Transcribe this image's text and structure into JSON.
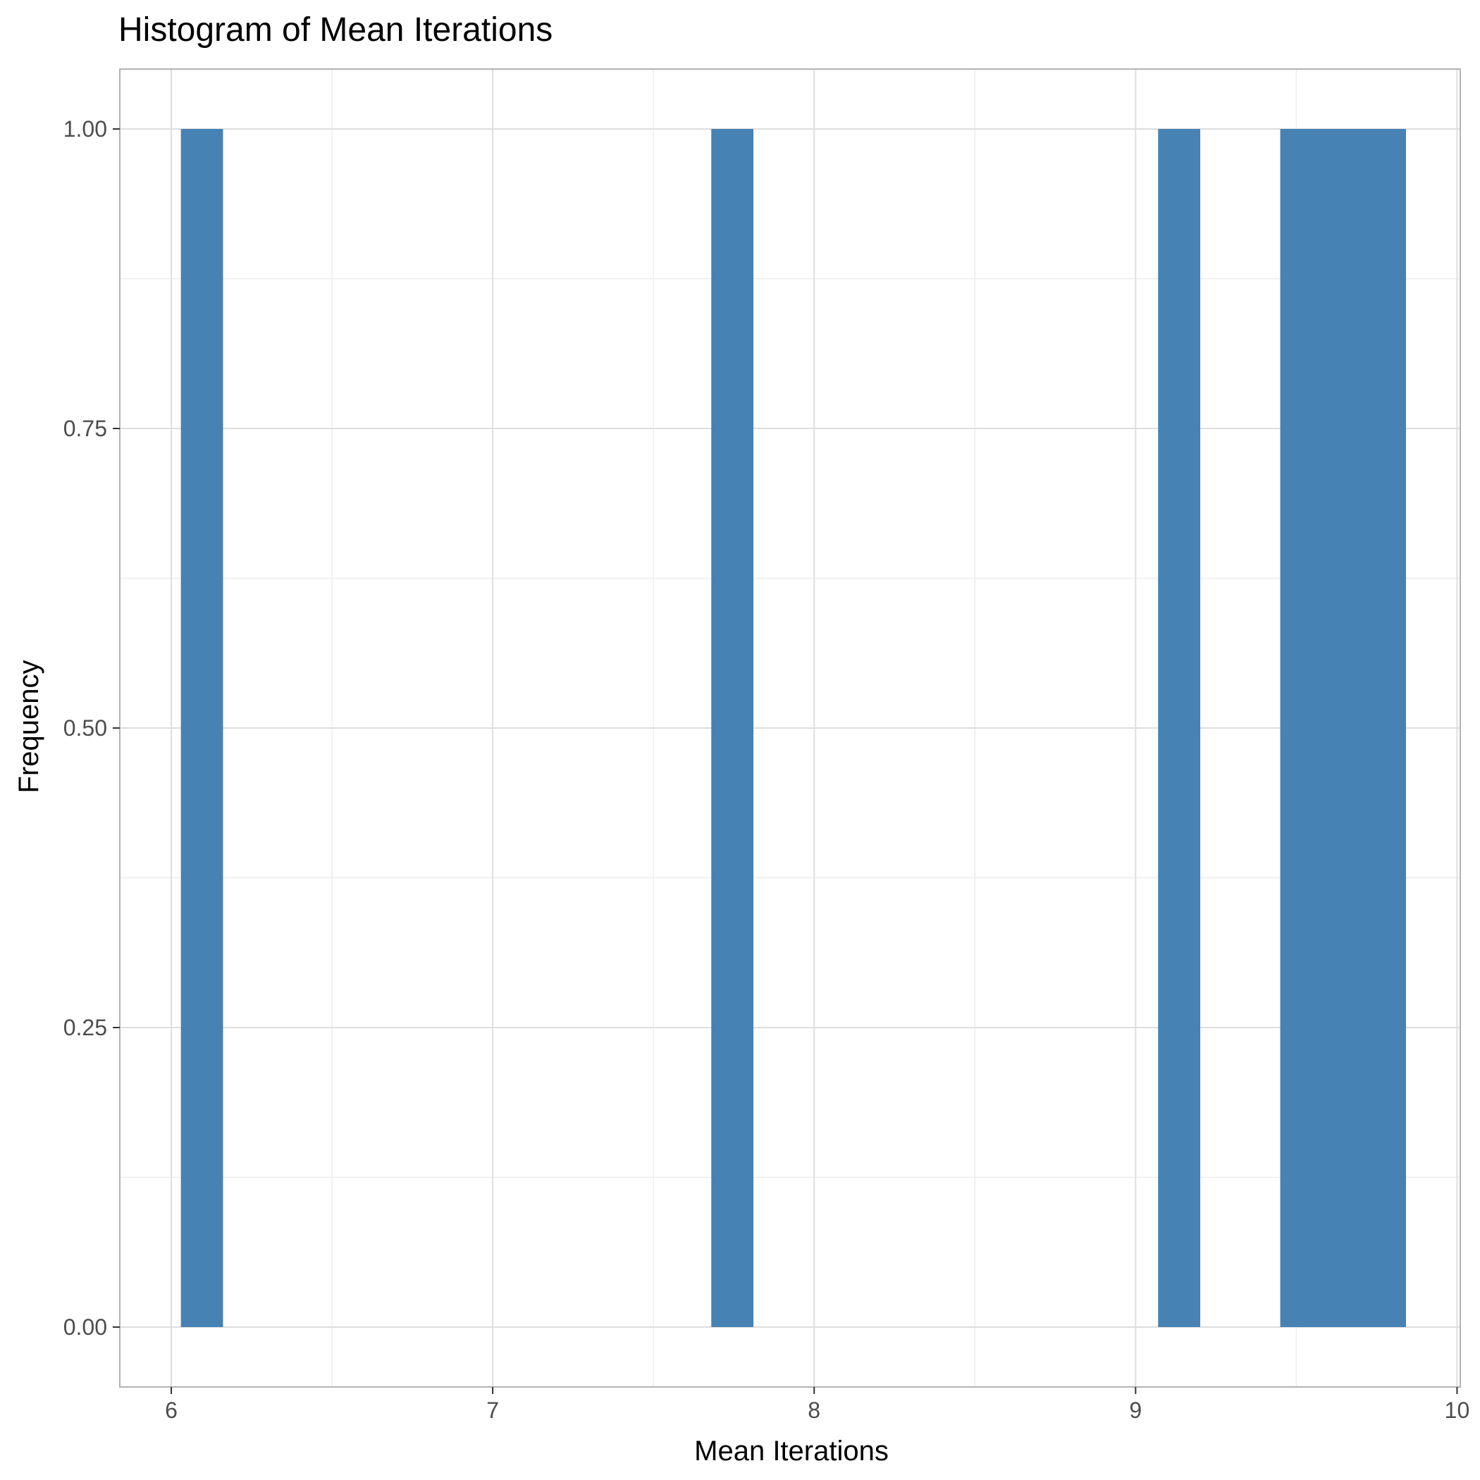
{
  "chart_data": {
    "type": "bar",
    "title": "Histogram of Mean Iterations",
    "xlabel": "Mean Iterations",
    "ylabel": "Frequency",
    "xlim": [
      5.84,
      10.01
    ],
    "ylim": [
      -0.05,
      1.05
    ],
    "xticks": [
      6,
      7,
      8,
      9,
      10
    ],
    "xtick_labels": [
      "6",
      "7",
      "8",
      "9",
      "10"
    ],
    "yticks": [
      0,
      0.25,
      0.5,
      0.75,
      1.0
    ],
    "ytick_labels": [
      "0.00",
      "0.25",
      "0.50",
      "0.75",
      "1.00"
    ],
    "bins": [
      {
        "x0": 6.03,
        "x1": 6.16,
        "count": 1
      },
      {
        "x0": 7.68,
        "x1": 7.81,
        "count": 1
      },
      {
        "x0": 9.07,
        "x1": 9.2,
        "count": 1
      },
      {
        "x0": 9.45,
        "x1": 9.58,
        "count": 1
      },
      {
        "x0": 9.58,
        "x1": 9.71,
        "count": 1
      },
      {
        "x0": 9.71,
        "x1": 9.84,
        "count": 1
      }
    ],
    "bar_color": "#4682b4",
    "grid": true,
    "legend": "none"
  }
}
